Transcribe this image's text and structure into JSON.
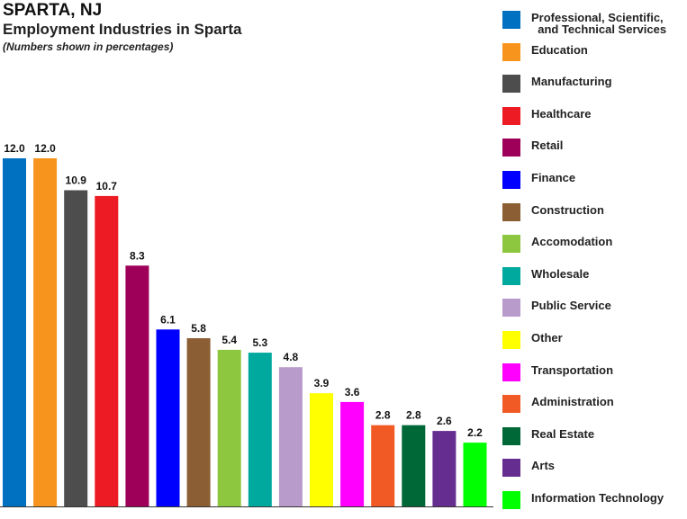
{
  "header": {
    "city": "SPARTA, NJ",
    "title": "Employment Industries in Sparta",
    "subtitle": "(Numbers shown in percentages)"
  },
  "chart_data": {
    "type": "bar",
    "title": "Employment Industries in Sparta",
    "subtitle": "(Numbers shown in percentages)",
    "xlabel": "",
    "ylabel": "",
    "ylim": [
      0,
      14
    ],
    "grid": false,
    "legend_position": "right",
    "categories": [
      "Professional, Scientific,\n  and Technical Services",
      "Education",
      "Manufacturing",
      "Healthcare",
      "Retail",
      "Finance",
      "Construction",
      "Accomodation",
      "Wholesale",
      "Public Service",
      "Other",
      "Transportation",
      "Administration",
      "Real Estate",
      "Arts",
      "Information Technology"
    ],
    "values": [
      12.0,
      12.0,
      10.9,
      10.7,
      8.3,
      6.1,
      5.8,
      5.4,
      5.3,
      4.8,
      3.9,
      3.6,
      2.8,
      2.8,
      2.6,
      2.2
    ],
    "value_labels": [
      "12.0",
      "12.0",
      "10.9",
      "10.7",
      "8.3",
      "6.1",
      "5.8",
      "5.4",
      "5.3",
      "4.8",
      "3.9",
      "3.6",
      "2.8",
      "2.8",
      "2.6",
      "2.2"
    ],
    "colors": [
      "#0070C0",
      "#F7941D",
      "#4D4D4D",
      "#ED1C24",
      "#9E0059",
      "#0000FF",
      "#8B5E34",
      "#8DC63F",
      "#00A99D",
      "#B99BCB",
      "#FFFF00",
      "#FF00FF",
      "#F15A24",
      "#006837",
      "#662D91",
      "#00FF00"
    ]
  }
}
